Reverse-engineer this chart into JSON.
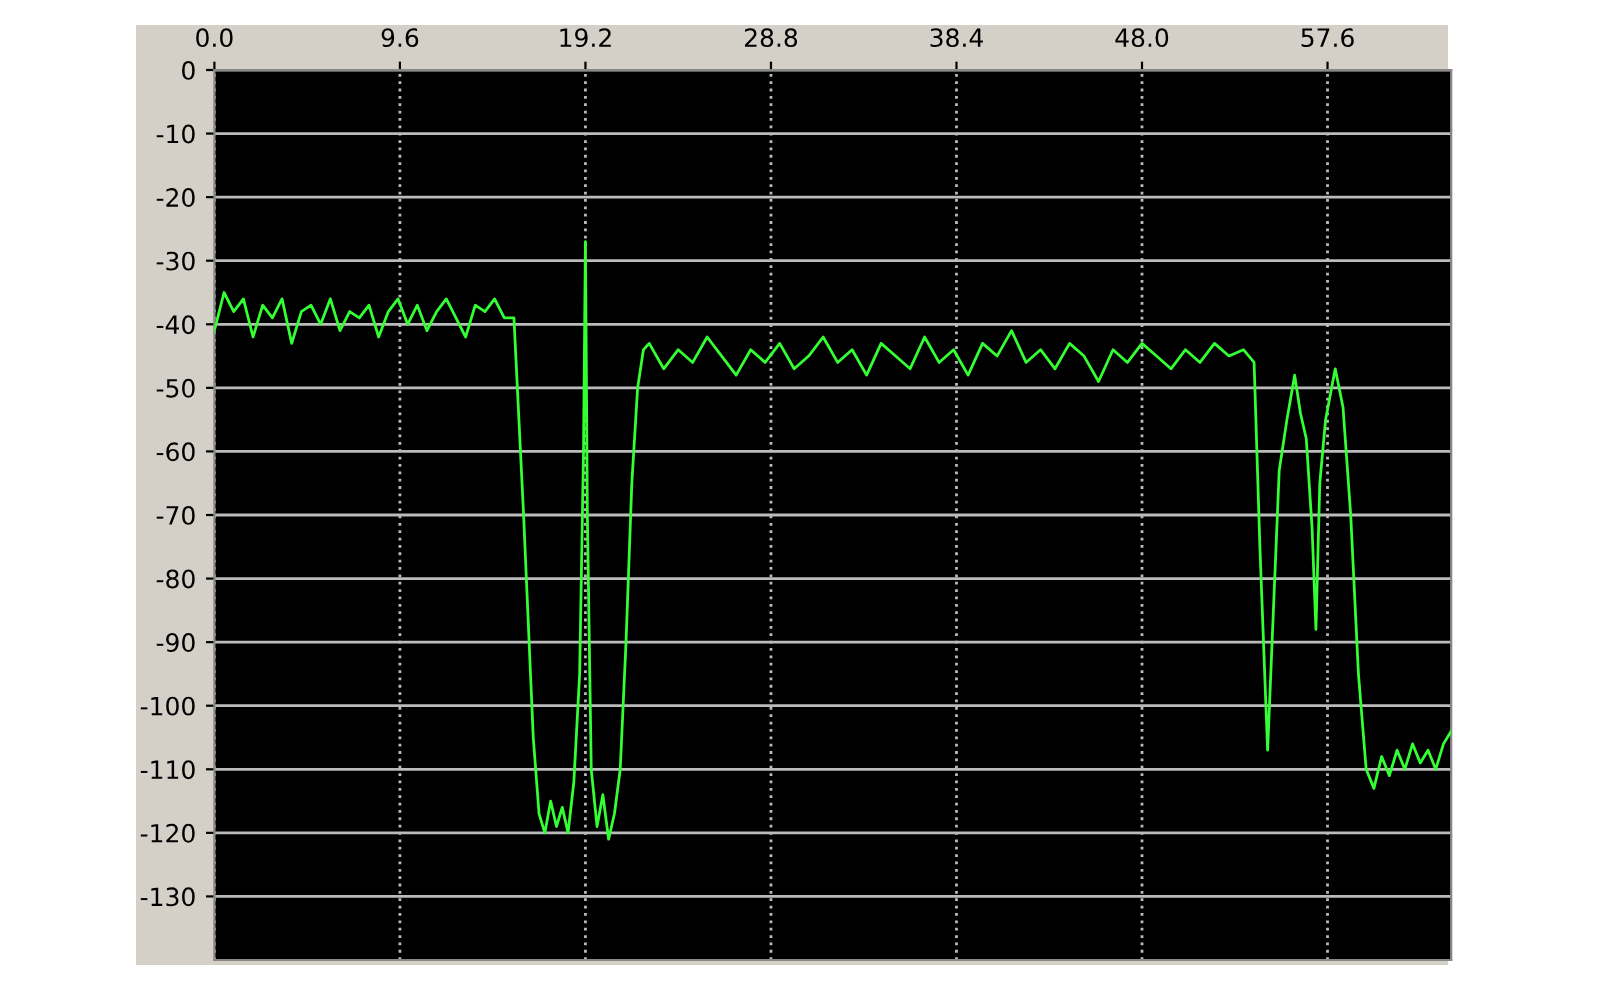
{
  "chart_data": {
    "type": "line",
    "x": [
      0,
      0.5,
      1,
      1.5,
      2,
      2.5,
      3,
      3.5,
      4,
      4.5,
      5,
      5.5,
      6,
      6.5,
      7,
      7.5,
      8,
      8.5,
      9,
      9.5,
      10,
      10.5,
      11,
      11.5,
      12,
      12.5,
      13,
      13.5,
      14,
      14.5,
      15,
      15.5,
      16.0,
      16.5,
      16.8,
      17.1,
      17.4,
      17.7,
      18.0,
      18.3,
      18.6,
      18.9,
      19.1,
      19.2,
      19.3,
      19.5,
      19.8,
      20.1,
      20.4,
      20.7,
      21.0,
      21.3,
      21.6,
      21.9,
      22.2,
      22.5,
      23.25,
      24,
      24.75,
      25.5,
      26.25,
      27,
      27.75,
      28.5,
      29.25,
      30,
      30.75,
      31.5,
      32.25,
      33,
      33.75,
      34.5,
      35.25,
      36,
      36.75,
      37.5,
      38.25,
      39,
      39.75,
      40.5,
      41.25,
      42,
      42.75,
      43.5,
      44.25,
      45,
      45.75,
      46.5,
      47.25,
      48,
      48.75,
      49.5,
      50.25,
      51,
      51.75,
      52.5,
      53.25,
      53.8,
      54.1,
      54.5,
      54.8,
      55.1,
      55.5,
      55.9,
      56.2,
      56.5,
      56.8,
      57.0,
      57.2,
      57.5,
      58.0,
      58.4,
      58.8,
      59.2,
      59.6,
      60.0,
      60.4,
      60.8,
      61.2,
      61.6,
      62.0,
      62.4,
      62.8,
      63.2,
      63.6,
      64.0
    ],
    "series": [
      {
        "color": "#33ff33",
        "values": [
          -41,
          -35,
          -38,
          -36,
          -42,
          -37,
          -39,
          -36,
          -43,
          -38,
          -37,
          -40,
          -36,
          -41,
          -38,
          -39,
          -37,
          -42,
          -38,
          -36,
          -40,
          -37,
          -41,
          -38,
          -36,
          -39,
          -42,
          -37,
          -38,
          -36,
          -39,
          -39,
          -70,
          -105,
          -117,
          -120,
          -115,
          -119,
          -116,
          -120,
          -112,
          -95,
          -60,
          -27,
          -70,
          -110,
          -119,
          -114,
          -121,
          -117,
          -110,
          -90,
          -65,
          -50,
          -44,
          -43,
          -47,
          -44,
          -46,
          -42,
          -45,
          -48,
          -44,
          -46,
          -43,
          -47,
          -45,
          -42,
          -46,
          -44,
          -48,
          -43,
          -45,
          -47,
          -42,
          -46,
          -44,
          -48,
          -43,
          -45,
          -41,
          -46,
          -44,
          -47,
          -43,
          -45,
          -49,
          -44,
          -46,
          -43,
          -45,
          -47,
          -44,
          -46,
          -43,
          -45,
          -44,
          -46,
          -75,
          -107,
          -85,
          -63,
          -55,
          -48,
          -54,
          -58,
          -72,
          -88,
          -65,
          -55,
          -47,
          -53,
          -70,
          -95,
          -110,
          -113,
          -108,
          -111,
          -107,
          -110,
          -106,
          -109,
          -107,
          -110,
          -106,
          -104
        ]
      }
    ],
    "xlim": [
      0,
      64
    ],
    "xticks": [
      {
        "value": 0,
        "label": "0.0"
      },
      9.6,
      19.2,
      28.8,
      38.4,
      {
        "value": 48,
        "label": "48.0"
      },
      57.6
    ],
    "ylim": [
      -140,
      0
    ],
    "yticks": [
      0,
      -10,
      -20,
      -30,
      -40,
      -50,
      -60,
      -70,
      -80,
      -90,
      -100,
      -110,
      -120,
      -130
    ],
    "grid": true,
    "marker": "none",
    "line_style": "solid"
  }
}
